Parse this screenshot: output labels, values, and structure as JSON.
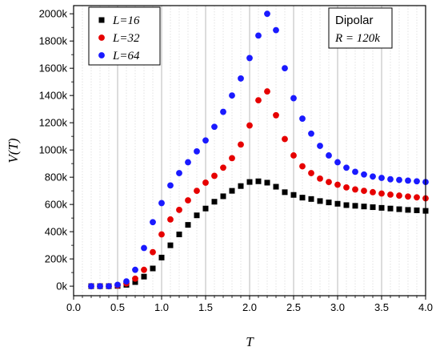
{
  "chart_data": {
    "type": "scatter",
    "xlabel": "T",
    "ylabel": "V(T)",
    "xlim": [
      0.0,
      4.0
    ],
    "ylim": [
      -70000,
      2060000
    ],
    "x_ticks": [
      0.0,
      0.5,
      1.0,
      1.5,
      2.0,
      2.5,
      3.0,
      3.5,
      4.0
    ],
    "x_tick_labels": [
      "0.0",
      "0.5",
      "1.0",
      "1.5",
      "2.0",
      "2.5",
      "3.0",
      "3.5",
      "4.0"
    ],
    "y_ticks": [
      0,
      200000,
      400000,
      600000,
      800000,
      1000000,
      1200000,
      1400000,
      1600000,
      1800000,
      2000000
    ],
    "y_tick_labels": [
      "0k",
      "200k",
      "400k",
      "600k",
      "800k",
      "1000k",
      "1200k",
      "1400k",
      "1600k",
      "1800k",
      "2000k"
    ],
    "grid": "major and minor vertical lines",
    "legend_position": "top-left",
    "annotation": {
      "title": "Dipolar",
      "subtitle": "R = 120k",
      "position": "top-right"
    },
    "series": [
      {
        "name": "L=16",
        "marker": "square",
        "color": "#000000",
        "points": [
          [
            0.2,
            0
          ],
          [
            0.3,
            0
          ],
          [
            0.4,
            0
          ],
          [
            0.5,
            2000
          ],
          [
            0.6,
            10000
          ],
          [
            0.7,
            30000
          ],
          [
            0.8,
            70000
          ],
          [
            0.9,
            130000
          ],
          [
            1.0,
            210000
          ],
          [
            1.1,
            300000
          ],
          [
            1.2,
            380000
          ],
          [
            1.3,
            450000
          ],
          [
            1.4,
            520000
          ],
          [
            1.5,
            570000
          ],
          [
            1.6,
            620000
          ],
          [
            1.7,
            660000
          ],
          [
            1.8,
            700000
          ],
          [
            1.9,
            735000
          ],
          [
            2.0,
            765000
          ],
          [
            2.1,
            770000
          ],
          [
            2.2,
            760000
          ],
          [
            2.3,
            730000
          ],
          [
            2.4,
            690000
          ],
          [
            2.5,
            670000
          ],
          [
            2.6,
            650000
          ],
          [
            2.7,
            640000
          ],
          [
            2.8,
            625000
          ],
          [
            2.9,
            615000
          ],
          [
            3.0,
            605000
          ],
          [
            3.1,
            595000
          ],
          [
            3.2,
            590000
          ],
          [
            3.3,
            585000
          ],
          [
            3.4,
            580000
          ],
          [
            3.5,
            575000
          ],
          [
            3.6,
            570000
          ],
          [
            3.7,
            565000
          ],
          [
            3.8,
            560000
          ],
          [
            3.9,
            557000
          ],
          [
            4.0,
            553000
          ]
        ]
      },
      {
        "name": "L=32",
        "marker": "circle",
        "color": "#e60000",
        "points": [
          [
            0.2,
            0
          ],
          [
            0.3,
            0
          ],
          [
            0.4,
            0
          ],
          [
            0.5,
            5000
          ],
          [
            0.6,
            20000
          ],
          [
            0.7,
            55000
          ],
          [
            0.8,
            120000
          ],
          [
            0.9,
            250000
          ],
          [
            1.0,
            380000
          ],
          [
            1.1,
            490000
          ],
          [
            1.2,
            560000
          ],
          [
            1.3,
            630000
          ],
          [
            1.4,
            700000
          ],
          [
            1.5,
            760000
          ],
          [
            1.6,
            810000
          ],
          [
            1.7,
            870000
          ],
          [
            1.8,
            940000
          ],
          [
            1.9,
            1040000
          ],
          [
            2.0,
            1180000
          ],
          [
            2.1,
            1365000
          ],
          [
            2.2,
            1430000
          ],
          [
            2.3,
            1255000
          ],
          [
            2.4,
            1080000
          ],
          [
            2.5,
            960000
          ],
          [
            2.6,
            880000
          ],
          [
            2.7,
            830000
          ],
          [
            2.8,
            790000
          ],
          [
            2.9,
            765000
          ],
          [
            3.0,
            745000
          ],
          [
            3.1,
            725000
          ],
          [
            3.2,
            710000
          ],
          [
            3.3,
            700000
          ],
          [
            3.4,
            690000
          ],
          [
            3.5,
            680000
          ],
          [
            3.6,
            672000
          ],
          [
            3.7,
            665000
          ],
          [
            3.8,
            658000
          ],
          [
            3.9,
            652000
          ],
          [
            4.0,
            645000
          ]
        ]
      },
      {
        "name": "L=64",
        "marker": "circle",
        "color": "#1a1aff",
        "points": [
          [
            0.2,
            0
          ],
          [
            0.3,
            0
          ],
          [
            0.4,
            0
          ],
          [
            0.5,
            10000
          ],
          [
            0.6,
            35000
          ],
          [
            0.7,
            120000
          ],
          [
            0.8,
            280000
          ],
          [
            0.9,
            470000
          ],
          [
            1.0,
            610000
          ],
          [
            1.1,
            740000
          ],
          [
            1.2,
            830000
          ],
          [
            1.3,
            910000
          ],
          [
            1.4,
            990000
          ],
          [
            1.5,
            1070000
          ],
          [
            1.6,
            1170000
          ],
          [
            1.7,
            1280000
          ],
          [
            1.8,
            1400000
          ],
          [
            1.9,
            1525000
          ],
          [
            2.0,
            1675000
          ],
          [
            2.1,
            1840000
          ],
          [
            2.2,
            2000000
          ],
          [
            2.3,
            1880000
          ],
          [
            2.4,
            1600000
          ],
          [
            2.5,
            1380000
          ],
          [
            2.6,
            1230000
          ],
          [
            2.7,
            1120000
          ],
          [
            2.8,
            1030000
          ],
          [
            2.9,
            960000
          ],
          [
            3.0,
            910000
          ],
          [
            3.1,
            870000
          ],
          [
            3.2,
            840000
          ],
          [
            3.3,
            820000
          ],
          [
            3.4,
            805000
          ],
          [
            3.5,
            795000
          ],
          [
            3.6,
            785000
          ],
          [
            3.7,
            780000
          ],
          [
            3.8,
            775000
          ],
          [
            3.9,
            770000
          ],
          [
            4.0,
            765000
          ]
        ]
      }
    ]
  }
}
